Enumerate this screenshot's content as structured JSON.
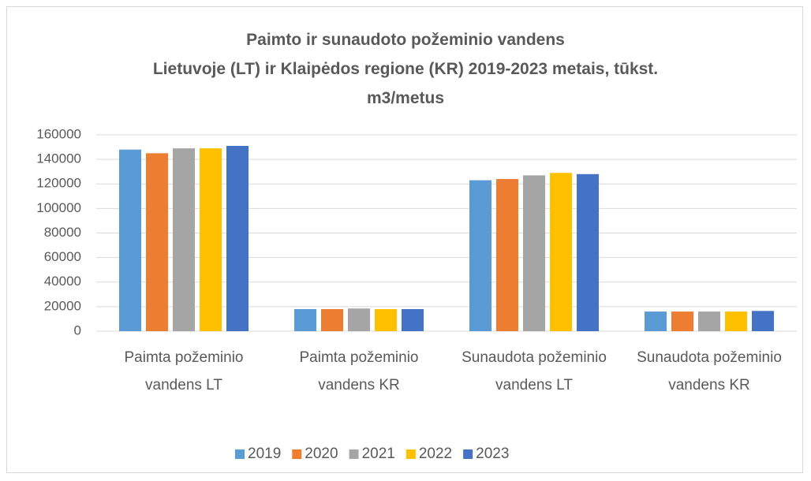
{
  "chart_data": {
    "type": "bar",
    "title": "Paimto ir sunaudoto požeminio vandens\nLietuvoje (LT) ir Klaipėdos regione (KR) 2019-2023 metais, tūkst. m3/metus",
    "categories": [
      "Paimta požeminio vandens LT",
      "Paimta požeminio vandens KR",
      "Sunaudota požeminio vandens LT",
      "Sunaudota požeminio vandens KR"
    ],
    "series": [
      {
        "name": "2019",
        "color": "#5b9bd5",
        "values": [
          148000,
          18000,
          123000,
          16000
        ]
      },
      {
        "name": "2020",
        "color": "#ed7d31",
        "values": [
          145000,
          18000,
          124000,
          16000
        ]
      },
      {
        "name": "2021",
        "color": "#a5a5a5",
        "values": [
          149000,
          18500,
          127000,
          16000
        ]
      },
      {
        "name": "2022",
        "color": "#ffc000",
        "values": [
          149000,
          18000,
          129000,
          16000
        ]
      },
      {
        "name": "2023",
        "color": "#4472c4",
        "values": [
          151000,
          18000,
          128000,
          16500
        ]
      }
    ],
    "ylim": [
      0,
      160000
    ],
    "yticks": [
      0,
      20000,
      40000,
      60000,
      80000,
      100000,
      120000,
      140000,
      160000
    ],
    "grid": true,
    "legend": "bottom"
  }
}
